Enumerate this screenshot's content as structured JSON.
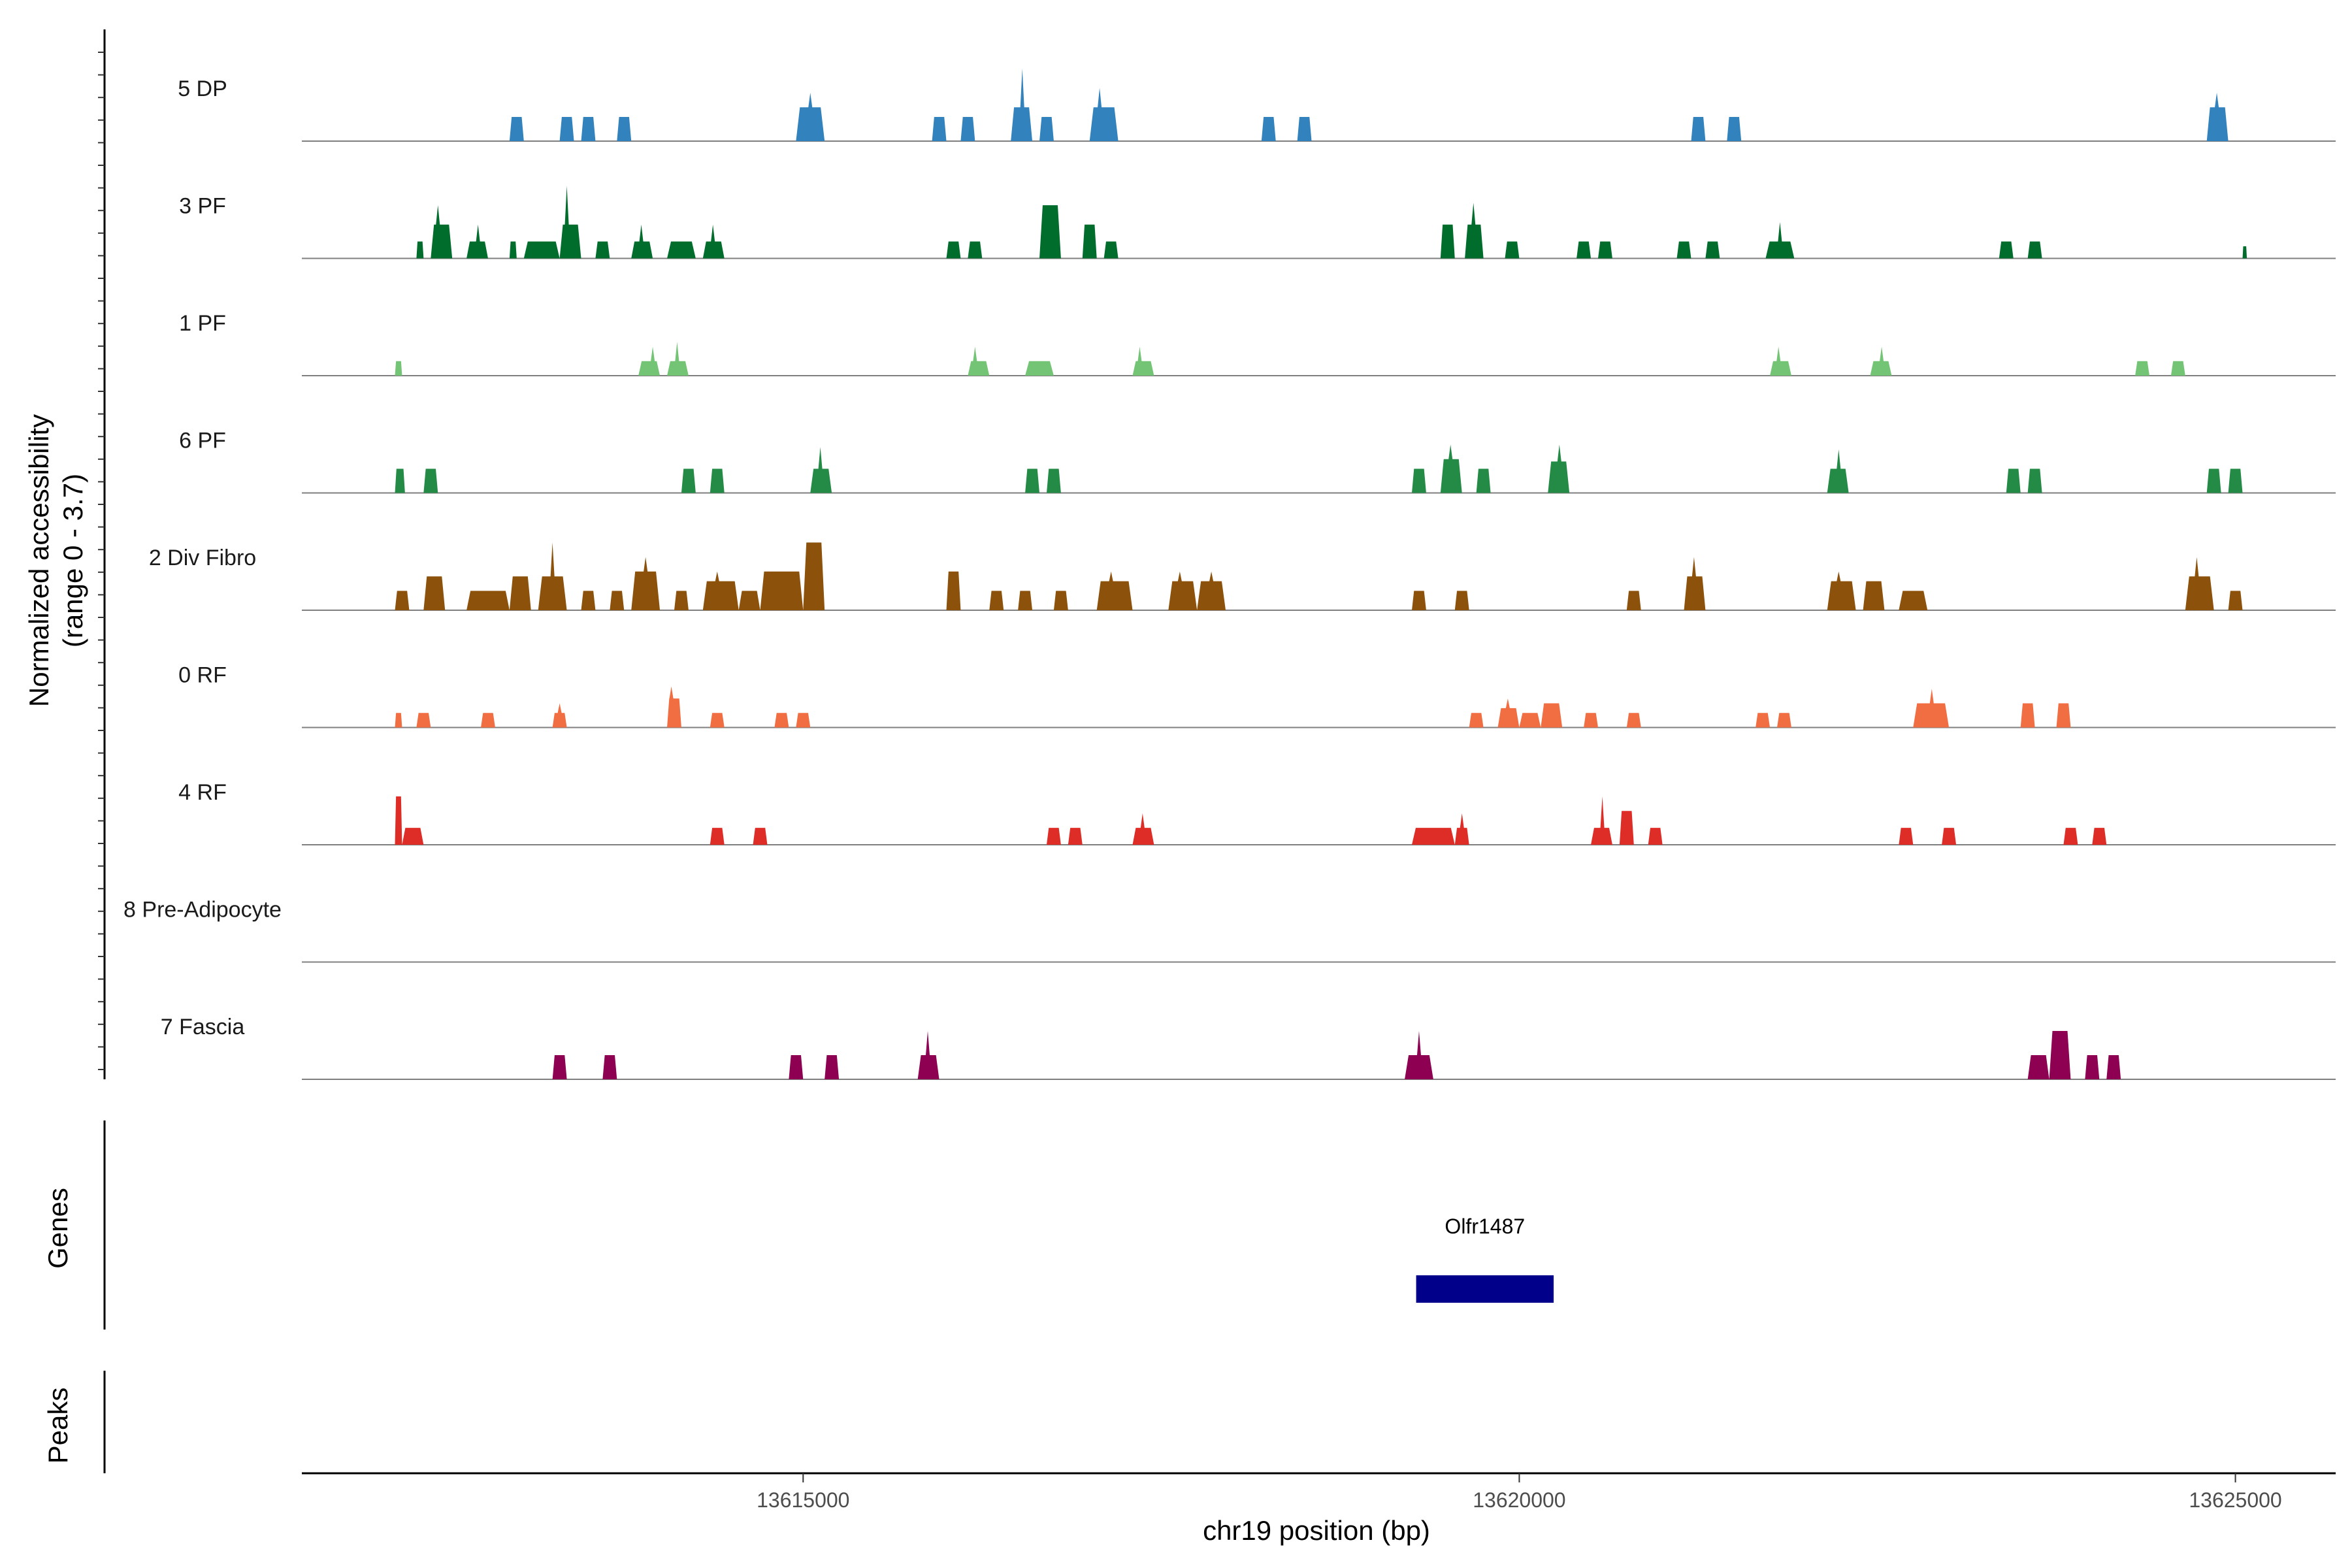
{
  "chart_data": {
    "type": "area",
    "title": "",
    "xlabel": "chr19 position (bp)",
    "ylabel_lines": [
      "Normalized accessibility",
      "(range 0 - 3.7)"
    ],
    "ylim": [
      0,
      3.7
    ],
    "xlim": [
      13611500,
      13625700
    ],
    "x_ticks": [
      13615000,
      13620000,
      13625000
    ],
    "x_tick_labels": [
      "13615000",
      "13620000",
      "13625000"
    ],
    "tracks": [
      {
        "name": "5 DP",
        "color": "#3182bd",
        "peaks": [
          [
            13612950,
            13613050,
            1.0
          ],
          [
            13613300,
            13613400,
            1.0
          ],
          [
            13613450,
            13613550,
            1.0
          ],
          [
            13613700,
            13613800,
            1.0
          ],
          [
            13614950,
            13615150,
            1.4,
            13615050,
            2.0
          ],
          [
            13615900,
            13616000,
            1.0
          ],
          [
            13616100,
            13616200,
            1.0
          ],
          [
            13616450,
            13616600,
            1.4,
            13616530,
            3.0
          ],
          [
            13616650,
            13616750,
            1.0
          ],
          [
            13617000,
            13617200,
            1.4,
            13617070,
            2.2
          ],
          [
            13618200,
            13618300,
            1.0
          ],
          [
            13618450,
            13618550,
            1.0
          ],
          [
            13621200,
            13621300,
            1.0
          ],
          [
            13621450,
            13621550,
            1.0
          ],
          [
            13624800,
            13624950,
            1.4,
            13624870,
            2.0
          ]
        ]
      },
      {
        "name": "3 PF",
        "color": "#006d2c",
        "peaks": [
          [
            13612300,
            13612350,
            0.7
          ],
          [
            13612400,
            13612550,
            1.4,
            13612450,
            2.2
          ],
          [
            13612650,
            13612800,
            0.7,
            13612730,
            1.4
          ],
          [
            13612950,
            13613000,
            0.7
          ],
          [
            13613050,
            13613300,
            0.7
          ],
          [
            13613300,
            13613450,
            1.4,
            13613350,
            3.0
          ],
          [
            13613550,
            13613650,
            0.7
          ],
          [
            13613800,
            13613950,
            0.7,
            13613870,
            1.4
          ],
          [
            13614050,
            13614250,
            0.7
          ],
          [
            13614300,
            13614450,
            0.7,
            13614370,
            1.4
          ],
          [
            13616000,
            13616100,
            0.7
          ],
          [
            13616150,
            13616250,
            0.7
          ],
          [
            13616650,
            13616800,
            2.2
          ],
          [
            13616950,
            13617050,
            1.4
          ],
          [
            13617100,
            13617200,
            0.7
          ],
          [
            13619450,
            13619550,
            1.4
          ],
          [
            13619620,
            13619750,
            1.4,
            13619680,
            2.3
          ],
          [
            13619900,
            13620000,
            0.7
          ],
          [
            13620400,
            13620500,
            0.7
          ],
          [
            13620550,
            13620650,
            0.7
          ],
          [
            13621100,
            13621200,
            0.7
          ],
          [
            13621300,
            13621400,
            0.7
          ],
          [
            13621720,
            13621920,
            0.7,
            13621820,
            1.5
          ],
          [
            13623350,
            13623450,
            0.7
          ],
          [
            13623550,
            13623650,
            0.7
          ],
          [
            13625050,
            13625080,
            0.5
          ]
        ]
      },
      {
        "name": "1 PF",
        "color": "#74c476",
        "peaks": [
          [
            13612150,
            13612200,
            0.6
          ],
          [
            13613850,
            13614000,
            0.6,
            13613950,
            1.2
          ],
          [
            13614050,
            13614200,
            0.6,
            13614120,
            1.4
          ],
          [
            13616150,
            13616300,
            0.6,
            13616200,
            1.2
          ],
          [
            13616550,
            13616750,
            0.6
          ],
          [
            13617300,
            13617450,
            0.6,
            13617350,
            1.2
          ],
          [
            13621750,
            13621900,
            0.6,
            13621810,
            1.2
          ],
          [
            13622450,
            13622600,
            0.6,
            13622530,
            1.2
          ],
          [
            13624300,
            13624400,
            0.6
          ],
          [
            13624550,
            13624650,
            0.6
          ]
        ]
      },
      {
        "name": "6 PF",
        "color": "#238b45",
        "peaks": [
          [
            13612150,
            13612220,
            1.0
          ],
          [
            13612350,
            13612450,
            1.0
          ],
          [
            13614150,
            13614250,
            1.0
          ],
          [
            13614350,
            13614450,
            1.0
          ],
          [
            13615050,
            13615200,
            1.0,
            13615120,
            1.9
          ],
          [
            13616550,
            13616650,
            1.0
          ],
          [
            13616700,
            13616800,
            1.0
          ],
          [
            13619250,
            13619350,
            1.0
          ],
          [
            13619450,
            13619600,
            1.4,
            13619520,
            2.0
          ],
          [
            13619700,
            13619800,
            1.0
          ],
          [
            13620200,
            13620350,
            1.3,
            13620280,
            2.0
          ],
          [
            13622150,
            13622300,
            1.0,
            13622230,
            1.8
          ],
          [
            13623400,
            13623500,
            1.0
          ],
          [
            13623550,
            13623650,
            1.0
          ],
          [
            13624800,
            13624900,
            1.0
          ],
          [
            13624950,
            13625050,
            1.0
          ]
        ]
      },
      {
        "name": "2 Div Fibro",
        "color": "#8c510a",
        "peaks": [
          [
            13612150,
            13612250,
            0.8
          ],
          [
            13612350,
            13612500,
            1.4
          ],
          [
            13612650,
            13612950,
            0.8
          ],
          [
            13612950,
            13613100,
            1.4
          ],
          [
            13613150,
            13613350,
            1.4,
            13613250,
            2.8
          ],
          [
            13613450,
            13613550,
            0.8
          ],
          [
            13613650,
            13613750,
            0.8
          ],
          [
            13613800,
            13614000,
            1.6,
            13613900,
            2.2
          ],
          [
            13614100,
            13614200,
            0.8
          ],
          [
            13614300,
            13614550,
            1.2,
            13614400,
            1.6
          ],
          [
            13614550,
            13614700,
            0.8
          ],
          [
            13614700,
            13615000,
            1.6
          ],
          [
            13615000,
            13615150,
            2.8
          ],
          [
            13616000,
            13616100,
            1.6
          ],
          [
            13616300,
            13616400,
            0.8
          ],
          [
            13616500,
            13616600,
            0.8
          ],
          [
            13616750,
            13616850,
            0.8
          ],
          [
            13617050,
            13617300,
            1.2,
            13617150,
            1.6
          ],
          [
            13617550,
            13617750,
            1.2,
            13617630,
            1.6
          ],
          [
            13617750,
            13617950,
            1.2,
            13617850,
            1.6
          ],
          [
            13619250,
            13619350,
            0.8
          ],
          [
            13619550,
            13619650,
            0.8
          ],
          [
            13620750,
            13620850,
            0.8
          ],
          [
            13621150,
            13621300,
            1.4,
            13621220,
            2.2
          ],
          [
            13622150,
            13622350,
            1.2,
            13622230,
            1.6
          ],
          [
            13622400,
            13622550,
            1.2
          ],
          [
            13622650,
            13622850,
            0.8
          ],
          [
            13624650,
            13624850,
            1.4,
            13624730,
            2.2
          ],
          [
            13624950,
            13625050,
            0.8
          ]
        ]
      },
      {
        "name": "0 RF",
        "color": "#f16d42",
        "peaks": [
          [
            13612150,
            13612200,
            0.6
          ],
          [
            13612300,
            13612400,
            0.6
          ],
          [
            13612750,
            13612850,
            0.6
          ],
          [
            13613250,
            13613350,
            0.6,
            13613300,
            1.0
          ],
          [
            13614050,
            13614150,
            1.2,
            13614080,
            1.7
          ],
          [
            13614350,
            13614450,
            0.6
          ],
          [
            13614800,
            13614900,
            0.6
          ],
          [
            13614950,
            13615050,
            0.6
          ],
          [
            13619650,
            13619750,
            0.6
          ],
          [
            13619850,
            13620000,
            0.8,
            13619920,
            1.2
          ],
          [
            13620000,
            13620150,
            0.6
          ],
          [
            13620150,
            13620300,
            1.0
          ],
          [
            13620450,
            13620550,
            0.6
          ],
          [
            13620750,
            13620850,
            0.6
          ],
          [
            13621650,
            13621750,
            0.6
          ],
          [
            13621800,
            13621900,
            0.6
          ],
          [
            13622750,
            13623000,
            1.0,
            13622880,
            1.6
          ],
          [
            13623500,
            13623600,
            1.0
          ],
          [
            13623750,
            13623850,
            1.0
          ]
        ]
      },
      {
        "name": "4 RF",
        "color": "#de2d26",
        "peaks": [
          [
            13612150,
            13612200,
            2.0
          ],
          [
            13612200,
            13612350,
            0.7
          ],
          [
            13614350,
            13614450,
            0.7
          ],
          [
            13614650,
            13614750,
            0.7
          ],
          [
            13616700,
            13616800,
            0.7
          ],
          [
            13616850,
            13616950,
            0.7
          ],
          [
            13617300,
            13617450,
            0.7,
            13617370,
            1.3
          ],
          [
            13619250,
            13619550,
            0.7
          ],
          [
            13619550,
            13619650,
            0.7,
            13619600,
            1.3
          ],
          [
            13620500,
            13620650,
            0.7,
            13620580,
            2.0
          ],
          [
            13620700,
            13620800,
            1.4
          ],
          [
            13620900,
            13621000,
            0.7
          ],
          [
            13622650,
            13622750,
            0.7
          ],
          [
            13622950,
            13623050,
            0.7
          ],
          [
            13623800,
            13623900,
            0.7
          ],
          [
            13624000,
            13624100,
            0.7
          ]
        ]
      },
      {
        "name": "8 Pre-Adipocyte",
        "color": "#d73027",
        "peaks": []
      },
      {
        "name": "7 Fascia",
        "color": "#8e0152",
        "peaks": [
          [
            13613250,
            13613350,
            1.0
          ],
          [
            13613600,
            13613700,
            1.0
          ],
          [
            13614900,
            13615000,
            1.0
          ],
          [
            13615150,
            13615250,
            1.0
          ],
          [
            13615800,
            13615950,
            1.0,
            13615870,
            2.0
          ],
          [
            13619200,
            13619400,
            1.0,
            13619300,
            2.0
          ],
          [
            13623550,
            13623700,
            1.0
          ],
          [
            13623700,
            13623850,
            2.0
          ],
          [
            13623950,
            13624050,
            1.0
          ],
          [
            13624100,
            13624200,
            1.0
          ]
        ]
      }
    ],
    "genes_track": {
      "label": "Genes",
      "genes": [
        {
          "name": "Olfr1487",
          "start": 13619280,
          "end": 13620240,
          "color": "#00008b"
        }
      ]
    },
    "peaks_track": {
      "label": "Peaks"
    }
  }
}
